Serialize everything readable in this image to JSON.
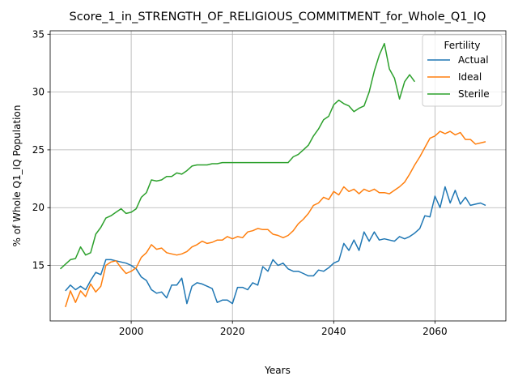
{
  "chart_data": {
    "type": "line",
    "title": "Score_1_in_STRENGTH_OF_RELIGIOUS_COMMITMENT_for_Whole_Q1_IQ",
    "xlabel": "Years",
    "ylabel": "% of Whole Q1_IQ Population",
    "xlim": [
      1984,
      2074
    ],
    "ylim": [
      10.2,
      35.3
    ],
    "xticks": [
      2000,
      2020,
      2040,
      2060
    ],
    "yticks": [
      15,
      20,
      25,
      30,
      35
    ],
    "grid": true,
    "legend": {
      "title": "Fertility",
      "placement": "top-right"
    },
    "series": [
      {
        "name": "Actual",
        "color": "#1f77b4",
        "x": [
          1987,
          1988,
          1989,
          1990,
          1991,
          1992,
          1993,
          1994,
          1995,
          1996,
          1997,
          1998,
          1999,
          2000,
          2001,
          2002,
          2003,
          2004,
          2005,
          2006,
          2007,
          2008,
          2009,
          2010,
          2011,
          2012,
          2013,
          2014,
          2015,
          2016,
          2017,
          2018,
          2019,
          2020,
          2021,
          2022,
          2023,
          2024,
          2025,
          2026,
          2027,
          2028,
          2029,
          2030,
          2031,
          2032,
          2033,
          2034,
          2035,
          2036,
          2037,
          2038,
          2039,
          2040,
          2041,
          2042,
          2043,
          2044,
          2045,
          2046,
          2047,
          2048,
          2049,
          2050,
          2051,
          2052,
          2053,
          2054,
          2055,
          2056,
          2057,
          2058,
          2059,
          2060,
          2061,
          2062,
          2063,
          2064,
          2065,
          2066,
          2067,
          2068,
          2069,
          2070
        ],
        "y": [
          12.8,
          13.3,
          12.9,
          13.2,
          12.9,
          13.7,
          14.4,
          14.2,
          15.5,
          15.5,
          15.4,
          15.3,
          15.2,
          15.0,
          14.7,
          14.0,
          13.7,
          12.9,
          12.6,
          12.7,
          12.2,
          13.3,
          13.3,
          13.9,
          11.7,
          13.2,
          13.5,
          13.4,
          13.2,
          13.0,
          11.8,
          12.0,
          12.0,
          11.7,
          13.1,
          13.1,
          12.9,
          13.5,
          13.3,
          14.9,
          14.5,
          15.5,
          15.0,
          15.2,
          14.7,
          14.5,
          14.5,
          14.3,
          14.1,
          14.1,
          14.6,
          14.5,
          14.8,
          15.2,
          15.4,
          16.9,
          16.3,
          17.2,
          16.3,
          17.9,
          17.1,
          17.9,
          17.2,
          17.3,
          17.2,
          17.1,
          17.5,
          17.3,
          17.5,
          17.8,
          18.2,
          19.3,
          19.2,
          21.0,
          20.0,
          21.8,
          20.4,
          21.5,
          20.3,
          20.9,
          20.2,
          20.3,
          20.4,
          20.2
        ]
      },
      {
        "name": "Ideal",
        "color": "#ff7f0e",
        "x": [
          1987,
          1988,
          1989,
          1990,
          1991,
          1992,
          1993,
          1994,
          1995,
          1996,
          1997,
          1998,
          1999,
          2000,
          2001,
          2002,
          2003,
          2004,
          2005,
          2006,
          2007,
          2008,
          2009,
          2010,
          2011,
          2012,
          2013,
          2014,
          2015,
          2016,
          2017,
          2018,
          2019,
          2020,
          2021,
          2022,
          2023,
          2024,
          2025,
          2026,
          2027,
          2028,
          2029,
          2030,
          2031,
          2032,
          2033,
          2034,
          2035,
          2036,
          2037,
          2038,
          2039,
          2040,
          2041,
          2042,
          2043,
          2044,
          2045,
          2046,
          2047,
          2048,
          2049,
          2050,
          2051,
          2052,
          2053,
          2054,
          2055,
          2056,
          2057,
          2058,
          2059,
          2060,
          2061,
          2062,
          2063,
          2064,
          2065,
          2066,
          2067,
          2068,
          2069,
          2070
        ],
        "y": [
          11.4,
          12.8,
          11.8,
          12.8,
          12.3,
          13.4,
          12.7,
          13.2,
          15.0,
          15.3,
          15.4,
          14.8,
          14.3,
          14.5,
          14.8,
          15.7,
          16.1,
          16.8,
          16.4,
          16.5,
          16.1,
          16.0,
          15.9,
          16.0,
          16.2,
          16.6,
          16.8,
          17.1,
          16.9,
          17.0,
          17.2,
          17.2,
          17.5,
          17.3,
          17.5,
          17.4,
          17.9,
          18.0,
          18.2,
          18.1,
          18.1,
          17.7,
          17.6,
          17.4,
          17.6,
          18.0,
          18.6,
          19.0,
          19.5,
          20.2,
          20.4,
          20.9,
          20.7,
          21.4,
          21.1,
          21.8,
          21.4,
          21.6,
          21.2,
          21.6,
          21.4,
          21.6,
          21.3,
          21.3,
          21.2,
          21.5,
          21.8,
          22.2,
          22.9,
          23.7,
          24.4,
          25.2,
          26.0,
          26.2,
          26.6,
          26.4,
          26.6,
          26.3,
          26.5,
          25.9,
          25.9,
          25.5,
          25.6,
          25.7
        ]
      },
      {
        "name": "Sterile",
        "color": "#2ca02c",
        "x": [
          1986,
          1987,
          1988,
          1989,
          1990,
          1991,
          1992,
          1993,
          1994,
          1995,
          1996,
          1997,
          1998,
          1999,
          2000,
          2001,
          2002,
          2003,
          2004,
          2005,
          2006,
          2007,
          2008,
          2009,
          2010,
          2011,
          2012,
          2013,
          2014,
          2015,
          2016,
          2017,
          2018,
          2019,
          2020,
          2021,
          2022,
          2023,
          2024,
          2025,
          2026,
          2027,
          2028,
          2029,
          2030,
          2031,
          2032,
          2033,
          2034,
          2035,
          2036,
          2037,
          2038,
          2039,
          2040,
          2041,
          2042,
          2043,
          2044,
          2045,
          2046,
          2047,
          2048,
          2049,
          2050,
          2051,
          2052,
          2053,
          2054,
          2055,
          2056
        ],
        "y": [
          14.7,
          15.1,
          15.5,
          15.6,
          16.6,
          15.9,
          16.1,
          17.7,
          18.3,
          19.1,
          19.3,
          19.6,
          19.9,
          19.5,
          19.6,
          19.9,
          20.9,
          21.3,
          22.4,
          22.3,
          22.4,
          22.7,
          22.7,
          23.0,
          22.9,
          23.2,
          23.6,
          23.7,
          23.7,
          23.7,
          23.8,
          23.8,
          23.9,
          23.9,
          23.9,
          23.9,
          23.9,
          23.9,
          23.9,
          23.9,
          23.9,
          23.9,
          23.9,
          23.9,
          23.9,
          23.9,
          24.4,
          24.6,
          25.0,
          25.4,
          26.2,
          26.8,
          27.6,
          27.9,
          28.9,
          29.3,
          29.0,
          28.8,
          28.3,
          28.6,
          28.8,
          30.0,
          31.8,
          33.2,
          34.2,
          32.0,
          31.2,
          29.4,
          30.9,
          31.5,
          30.9
        ]
      }
    ]
  }
}
